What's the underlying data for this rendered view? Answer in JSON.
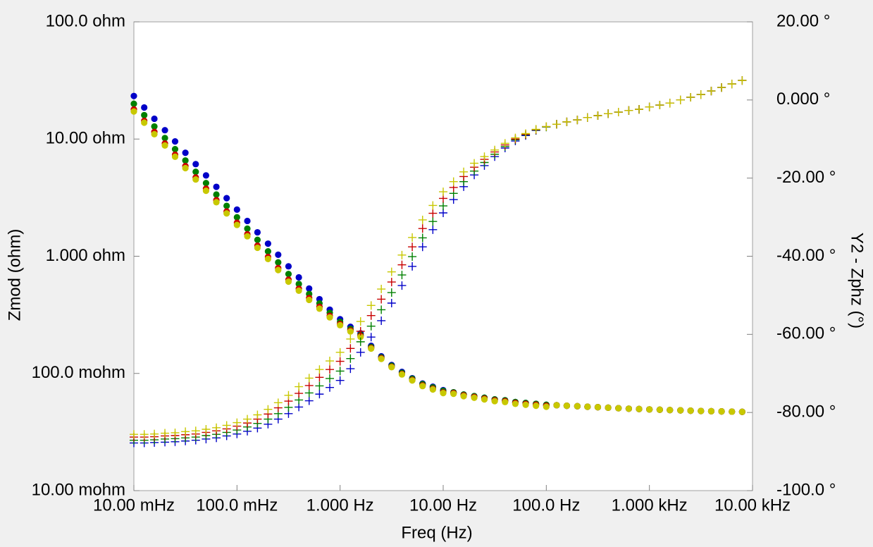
{
  "chart_data": {
    "type": "scatter",
    "xlabel": "Freq (Hz)",
    "ylabel": "Zmod (ohm)",
    "y2label": "Y2 - Zphz (°)",
    "xscale": "log",
    "yscale": "log",
    "xlim": [
      0.01,
      10000
    ],
    "ylim": [
      0.01,
      100
    ],
    "y2lim": [
      -100,
      20
    ],
    "xticks": [
      {
        "value": 0.01,
        "label": "10.00 mHz"
      },
      {
        "value": 0.1,
        "label": "100.0 mHz"
      },
      {
        "value": 1,
        "label": "1.000 Hz"
      },
      {
        "value": 10,
        "label": "10.00 Hz"
      },
      {
        "value": 100,
        "label": "100.0 Hz"
      },
      {
        "value": 1000,
        "label": "1.000 kHz"
      },
      {
        "value": 10000,
        "label": "10.00 kHz"
      }
    ],
    "yticks": [
      {
        "value": 100,
        "label": "100.0 ohm"
      },
      {
        "value": 10,
        "label": "10.00 ohm"
      },
      {
        "value": 1,
        "label": "1.000 ohm"
      },
      {
        "value": 0.1,
        "label": "100.0 mohm"
      },
      {
        "value": 0.01,
        "label": "10.00 mohm"
      }
    ],
    "y2ticks": [
      {
        "value": 20,
        "label": "20.00 °"
      },
      {
        "value": 0,
        "label": "0.000 °"
      },
      {
        "value": -20,
        "label": "-20.00 °"
      },
      {
        "value": -40,
        "label": "-40.00 °"
      },
      {
        "value": -60,
        "label": "-60.00 °"
      },
      {
        "value": -80,
        "label": "-80.00 °"
      },
      {
        "value": -100,
        "label": "-100.0 °"
      }
    ],
    "x": [
      0.01,
      0.0126,
      0.0158,
      0.02,
      0.0251,
      0.0316,
      0.0398,
      0.0501,
      0.0631,
      0.0794,
      0.1,
      0.126,
      0.158,
      0.2,
      0.251,
      0.316,
      0.398,
      0.501,
      0.631,
      0.794,
      1,
      1.26,
      1.58,
      2,
      2.51,
      3.16,
      3.98,
      5.01,
      6.31,
      7.94,
      10,
      12.6,
      15.8,
      20,
      25.1,
      31.6,
      39.8,
      50.1,
      63.1,
      79.4,
      100,
      126,
      158,
      200,
      251,
      316,
      398,
      501,
      631,
      794,
      1000,
      1260,
      1580,
      2000,
      2510,
      3160,
      3980,
      5010,
      6310,
      7940
    ],
    "series": [
      {
        "color": "#0000c8",
        "marker": "circle",
        "axis": "y",
        "values": [
          23.3,
          18.6,
          14.9,
          11.9,
          9.54,
          7.63,
          6.11,
          4.89,
          3.91,
          3.13,
          2.5,
          2.0,
          1.6,
          1.28,
          1.03,
          0.82,
          0.66,
          0.53,
          0.43,
          0.35,
          0.29,
          0.25,
          0.22,
          0.172,
          0.14,
          0.118,
          0.103,
          0.091,
          0.082,
          0.077,
          0.072,
          0.069,
          0.066,
          0.064,
          0.062,
          0.06,
          0.059,
          0.057,
          0.056,
          0.055,
          0.054,
          0.0535,
          0.053,
          0.0525,
          0.052,
          0.0515,
          0.051,
          0.0505,
          0.05,
          0.0497,
          0.0493,
          0.049,
          0.0487,
          0.0484,
          0.0481,
          0.0478,
          0.0476,
          0.0474,
          0.0472,
          0.047
        ]
      },
      {
        "color": "#008000",
        "marker": "circle",
        "axis": "y",
        "values": [
          20.0,
          16.0,
          12.8,
          10.2,
          8.2,
          6.56,
          5.25,
          4.21,
          3.36,
          2.69,
          2.15,
          1.72,
          1.38,
          1.1,
          0.886,
          0.705,
          0.58,
          0.477,
          0.396,
          0.329,
          0.276,
          0.24,
          0.213,
          0.168,
          0.137,
          0.116,
          0.101,
          0.09,
          0.081,
          0.076,
          0.071,
          0.069,
          0.066,
          0.064,
          0.062,
          0.06,
          0.059,
          0.057,
          0.056,
          0.055,
          0.054,
          0.0535,
          0.053,
          0.0525,
          0.052,
          0.0515,
          0.051,
          0.0505,
          0.05,
          0.0497,
          0.0493,
          0.049,
          0.0487,
          0.0484,
          0.0481,
          0.0478,
          0.0476,
          0.0474,
          0.0472,
          0.047
        ]
      },
      {
        "color": "#c80000",
        "marker": "circle",
        "axis": "y",
        "values": [
          17.9,
          14.3,
          11.5,
          9.16,
          7.35,
          5.88,
          4.7,
          3.77,
          3.01,
          2.41,
          1.93,
          1.54,
          1.23,
          0.986,
          0.793,
          0.631,
          0.528,
          0.44,
          0.37,
          0.31,
          0.264,
          0.233,
          0.209,
          0.165,
          0.135,
          0.114,
          0.099,
          0.088,
          0.079,
          0.074,
          0.069,
          0.068,
          0.065,
          0.063,
          0.061,
          0.059,
          0.058,
          0.056,
          0.055,
          0.054,
          0.053,
          0.0535,
          0.053,
          0.0525,
          0.052,
          0.0515,
          0.051,
          0.0505,
          0.05,
          0.0497,
          0.0493,
          0.049,
          0.0487,
          0.0484,
          0.0481,
          0.0478,
          0.0476,
          0.0474,
          0.0472,
          0.047
        ]
      },
      {
        "color": "#c8c800",
        "marker": "circle",
        "axis": "y",
        "values": [
          17.2,
          13.8,
          11.0,
          8.81,
          7.06,
          5.65,
          4.52,
          3.62,
          2.89,
          2.32,
          1.85,
          1.48,
          1.18,
          0.947,
          0.762,
          0.607,
          0.508,
          0.424,
          0.357,
          0.301,
          0.258,
          0.228,
          0.205,
          0.163,
          0.133,
          0.113,
          0.098,
          0.087,
          0.078,
          0.073,
          0.068,
          0.067,
          0.064,
          0.062,
          0.06,
          0.058,
          0.057,
          0.055,
          0.054,
          0.053,
          0.052,
          0.0535,
          0.053,
          0.0525,
          0.052,
          0.0515,
          0.051,
          0.0505,
          0.05,
          0.0497,
          0.0493,
          0.049,
          0.0487,
          0.0484,
          0.0481,
          0.0478,
          0.0476,
          0.0474,
          0.0472,
          0.047
        ]
      },
      {
        "color": "#0000c8",
        "marker": "plus",
        "axis": "y2",
        "values": [
          -87.8,
          -87.8,
          -87.7,
          -87.6,
          -87.5,
          -87.3,
          -87.1,
          -86.8,
          -86.5,
          -86.0,
          -85.5,
          -84.8,
          -84.0,
          -83.0,
          -81.7,
          -80.3,
          -78.6,
          -77.0,
          -75.3,
          -73.6,
          -71.8,
          -68.8,
          -64.6,
          -60.7,
          -56.5,
          -52.0,
          -47.5,
          -42.6,
          -37.6,
          -33.2,
          -28.9,
          -25.5,
          -22.2,
          -19.2,
          -16.8,
          -14.5,
          -12.3,
          -10.5,
          -9.1,
          -7.8,
          -6.9,
          -6.2,
          -5.6,
          -5.1,
          -4.5,
          -4.0,
          -3.5,
          -3.1,
          -2.7,
          -2.4,
          -1.8,
          -1.3,
          -0.8,
          0.0,
          0.7,
          1.4,
          2.3,
          3.2,
          4.1,
          5.0
        ]
      },
      {
        "color": "#008000",
        "marker": "plus",
        "axis": "y2",
        "values": [
          -87.1,
          -87.1,
          -87.0,
          -86.8,
          -86.7,
          -86.5,
          -86.3,
          -85.9,
          -85.6,
          -85.1,
          -84.5,
          -83.7,
          -82.8,
          -81.7,
          -80.3,
          -78.7,
          -76.8,
          -75.0,
          -73.2,
          -71.3,
          -69.4,
          -66.2,
          -61.9,
          -57.9,
          -53.7,
          -49.3,
          -44.8,
          -40.1,
          -35.3,
          -31.1,
          -27.1,
          -23.9,
          -20.9,
          -18.2,
          -16.0,
          -13.9,
          -11.9,
          -10.2,
          -8.9,
          -7.7,
          -6.9,
          -6.2,
          -5.6,
          -5.1,
          -4.5,
          -4.0,
          -3.5,
          -3.1,
          -2.7,
          -2.4,
          -1.8,
          -1.3,
          -0.8,
          0.0,
          0.7,
          1.4,
          2.3,
          3.2,
          4.1,
          5.0
        ]
      },
      {
        "color": "#c80000",
        "marker": "plus",
        "axis": "y2",
        "values": [
          -86.3,
          -86.3,
          -86.2,
          -86.0,
          -85.9,
          -85.7,
          -85.5,
          -85.1,
          -84.7,
          -84.2,
          -83.5,
          -82.7,
          -81.7,
          -80.4,
          -78.8,
          -77.1,
          -75.1,
          -73.1,
          -71.0,
          -69.0,
          -66.9,
          -63.6,
          -59.2,
          -55.2,
          -51.0,
          -46.6,
          -42.2,
          -37.6,
          -32.9,
          -29.0,
          -25.2,
          -22.4,
          -19.6,
          -17.2,
          -15.2,
          -13.3,
          -11.5,
          -10.0,
          -8.8,
          -7.6,
          -6.8,
          -6.2,
          -5.6,
          -5.1,
          -4.5,
          -4.0,
          -3.5,
          -3.1,
          -2.7,
          -2.4,
          -1.8,
          -1.3,
          -0.8,
          0.0,
          0.7,
          1.4,
          2.3,
          3.2,
          4.1,
          5.0
        ]
      },
      {
        "color": "#c8c800",
        "marker": "plus",
        "axis": "y2",
        "values": [
          -85.6,
          -85.6,
          -85.5,
          -85.3,
          -85.2,
          -84.9,
          -84.7,
          -84.3,
          -83.9,
          -83.3,
          -82.6,
          -81.7,
          -80.6,
          -79.2,
          -77.5,
          -75.6,
          -73.4,
          -71.2,
          -69.0,
          -66.8,
          -64.6,
          -61.2,
          -56.7,
          -52.6,
          -48.4,
          -44.0,
          -39.7,
          -35.2,
          -30.7,
          -27.0,
          -23.5,
          -20.9,
          -18.4,
          -16.2,
          -14.5,
          -12.8,
          -11.1,
          -9.7,
          -8.6,
          -7.5,
          -6.8,
          -6.2,
          -5.6,
          -5.1,
          -4.5,
          -4.0,
          -3.5,
          -3.1,
          -2.7,
          -2.4,
          -1.8,
          -1.3,
          -0.8,
          0.0,
          0.7,
          1.4,
          2.3,
          3.2,
          4.1,
          5.0
        ]
      }
    ]
  }
}
